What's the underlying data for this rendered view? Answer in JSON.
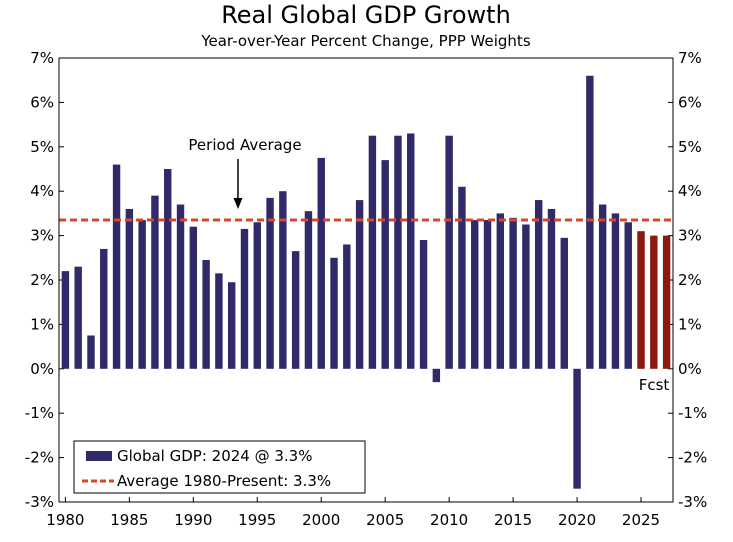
{
  "chart_data": {
    "type": "bar",
    "title": "Real Global GDP Growth",
    "subtitle": "Year-over-Year Percent Change, PPP Weights",
    "ylim": [
      -3,
      7
    ],
    "y_ticks": [
      -3,
      -2,
      -1,
      0,
      1,
      2,
      3,
      4,
      5,
      6,
      7
    ],
    "y_tick_labels": [
      "-3%",
      "-2%",
      "-1%",
      "0%",
      "1%",
      "2%",
      "3%",
      "4%",
      "5%",
      "6%",
      "7%"
    ],
    "x_ticks": [
      1980,
      1985,
      1990,
      1995,
      2000,
      2005,
      2010,
      2015,
      2020,
      2025
    ],
    "x_tick_labels": [
      "1980",
      "1985",
      "1990",
      "1995",
      "2000",
      "2005",
      "2010",
      "2015",
      "2020",
      "2025"
    ],
    "years": [
      1980,
      1981,
      1982,
      1983,
      1984,
      1985,
      1986,
      1987,
      1988,
      1989,
      1990,
      1991,
      1992,
      1993,
      1994,
      1995,
      1996,
      1997,
      1998,
      1999,
      2000,
      2001,
      2002,
      2003,
      2004,
      2005,
      2006,
      2007,
      2008,
      2009,
      2010,
      2011,
      2012,
      2013,
      2014,
      2015,
      2016,
      2017,
      2018,
      2019,
      2020,
      2021,
      2022,
      2023,
      2024,
      2025,
      2026,
      2027
    ],
    "values": [
      2.2,
      2.3,
      0.75,
      2.7,
      4.6,
      3.6,
      3.35,
      3.9,
      4.5,
      3.7,
      3.2,
      2.45,
      2.15,
      1.95,
      3.15,
      3.3,
      3.85,
      4.0,
      2.65,
      3.55,
      4.75,
      2.5,
      2.8,
      3.8,
      5.25,
      4.7,
      5.25,
      5.3,
      2.9,
      -0.3,
      5.25,
      4.1,
      3.35,
      3.35,
      3.5,
      3.4,
      3.25,
      3.8,
      3.6,
      2.95,
      -2.7,
      6.6,
      3.7,
      3.5,
      3.3,
      3.1,
      3.0,
      3.0
    ],
    "forecast_from": 2025,
    "average": 3.35,
    "colors": {
      "actual": "#302a68",
      "forecast": "#8b1a0e",
      "average": "#d9472b"
    },
    "annotations": {
      "period_average": "Period Average",
      "forecast": "Fcst"
    },
    "legend": {
      "position": "bottom-left",
      "bar_label": "Global GDP: 2024 @ 3.3%",
      "line_label": "Average 1980-Present: 3.3%"
    }
  }
}
